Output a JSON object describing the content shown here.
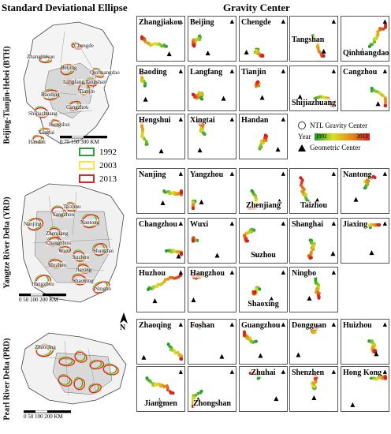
{
  "titles": {
    "left": "Standard Deviational Ellipse",
    "right": "Gravity Center"
  },
  "regions": [
    {
      "id": "bth",
      "label": "Beijing-Tianjin-Hebei (BTH)"
    },
    {
      "id": "yrd",
      "label": "Yangtze River Delta (YRD)"
    },
    {
      "id": "prd",
      "label": "Pearl River Delta (PRD)"
    }
  ],
  "maps": {
    "bth": {
      "cities": [
        "Zhangjiakou",
        "Chengde",
        "Beijing",
        "Qinhuangdao",
        "Langfang",
        "Tianjin",
        "Baoding",
        "Tangshan",
        "Cangzhou",
        "Shijiazhuang",
        "Hengshui",
        "Xingtai",
        "Handan"
      ],
      "scale": "0 75 150    300 KM"
    },
    "yrd": {
      "cities": [
        "Nanjing",
        "Yangzhou",
        "Taizhou",
        "Nantong",
        "Zhenjiang",
        "Changzhou",
        "Wuxi",
        "Suzhou",
        "Shanghai",
        "Huzhou",
        "Jiaxing",
        "Hangzhou",
        "Shaoxing",
        "Ningbo"
      ],
      "scale": "0  50 100     200 KM"
    },
    "prd": {
      "cities": [
        "Zhaoqing"
      ],
      "scale": "0   50 100     200 KM"
    }
  },
  "north": "N",
  "ellipse_legend": [
    {
      "year": "1992",
      "color": "#2e9e3a"
    },
    {
      "year": "2003",
      "color": "#f0ea40"
    },
    {
      "year": "2013",
      "color": "#d8282a"
    }
  ],
  "gravity_legend": {
    "ntl": "NTL Gravity Center",
    "year_label": "Year",
    "year_start": "1992",
    "year_end": "2013",
    "geo": "Geometric Center"
  },
  "ramp_colors": [
    "#1a9a2c",
    "#d8e020",
    "#e38a1a",
    "#d01e1e"
  ],
  "panels": [
    {
      "name": "Zhangjiakou",
      "r": 0,
      "c": 0,
      "lp": "tl"
    },
    {
      "name": "Beijing",
      "r": 0,
      "c": 1,
      "lp": "tl"
    },
    {
      "name": "Chengde",
      "r": 0,
      "c": 2,
      "lp": "tl"
    },
    {
      "name": "Tangshan",
      "r": 0,
      "c": 3,
      "lp": "ml"
    },
    {
      "name": "Qinhuangdao",
      "r": 0,
      "c": 4,
      "lp": "bl"
    },
    {
      "name": "Baoding",
      "r": 1,
      "c": 0,
      "lp": "tl"
    },
    {
      "name": "Langfang",
      "r": 1,
      "c": 1,
      "lp": "tl"
    },
    {
      "name": "Tianjin",
      "r": 1,
      "c": 2,
      "lp": "tl"
    },
    {
      "name": "Shijiazhuang",
      "r": 1,
      "c": 3,
      "lp": "bl"
    },
    {
      "name": "Cangzhou",
      "r": 1,
      "c": 4,
      "lp": "tl"
    },
    {
      "name": "Hengshui",
      "r": 2,
      "c": 0,
      "lp": "tl"
    },
    {
      "name": "Xingtai",
      "r": 2,
      "c": 1,
      "lp": "tl"
    },
    {
      "name": "Handan",
      "r": 2,
      "c": 2,
      "lp": "tl"
    },
    {
      "name": "Nanjing",
      "r": 3,
      "c": 0,
      "lp": "tl"
    },
    {
      "name": "Yangzhou",
      "r": 3,
      "c": 1,
      "lp": "tl"
    },
    {
      "name": "Zhenjiang",
      "r": 3,
      "c": 2,
      "lp": "bc"
    },
    {
      "name": "Taizhou",
      "r": 3,
      "c": 3,
      "lp": "bc"
    },
    {
      "name": "Nantong",
      "r": 3,
      "c": 4,
      "lp": "tl"
    },
    {
      "name": "Changzhou",
      "r": 4,
      "c": 0,
      "lp": "tl"
    },
    {
      "name": "Wuxi",
      "r": 4,
      "c": 1,
      "lp": "tl"
    },
    {
      "name": "Suzhou",
      "r": 4,
      "c": 2,
      "lp": "bc"
    },
    {
      "name": "Shanghai",
      "r": 4,
      "c": 3,
      "lp": "tl"
    },
    {
      "name": "Jiaxing",
      "r": 4,
      "c": 4,
      "lp": "tl"
    },
    {
      "name": "Huzhou",
      "r": 5,
      "c": 0,
      "lp": "tl"
    },
    {
      "name": "Hangzhou",
      "r": 5,
      "c": 1,
      "lp": "tl"
    },
    {
      "name": "Shaoxing",
      "r": 5,
      "c": 2,
      "lp": "bc"
    },
    {
      "name": "Ningbo",
      "r": 5,
      "c": 3,
      "lp": "tl"
    },
    {
      "name": "Zhaoqing",
      "r": 6,
      "c": 0,
      "lp": "tl"
    },
    {
      "name": "Foshan",
      "r": 6,
      "c": 1,
      "lp": "tl"
    },
    {
      "name": "Guangzhou",
      "r": 6,
      "c": 2,
      "lp": "tl"
    },
    {
      "name": "Dongguan",
      "r": 6,
      "c": 3,
      "lp": "tl"
    },
    {
      "name": "Huizhou",
      "r": 6,
      "c": 4,
      "lp": "tl"
    },
    {
      "name": "Jiangmen",
      "r": 7,
      "c": 0,
      "lp": "bc"
    },
    {
      "name": "Zhongshan",
      "r": 7,
      "c": 1,
      "lp": "bc"
    },
    {
      "name": "Zhuhai",
      "r": 7,
      "c": 2,
      "lp": "tc"
    },
    {
      "name": "Shenzhen",
      "r": 7,
      "c": 3,
      "lp": "tl"
    },
    {
      "name": "Hong Kong",
      "r": 7,
      "c": 4,
      "lp": "tl"
    }
  ]
}
